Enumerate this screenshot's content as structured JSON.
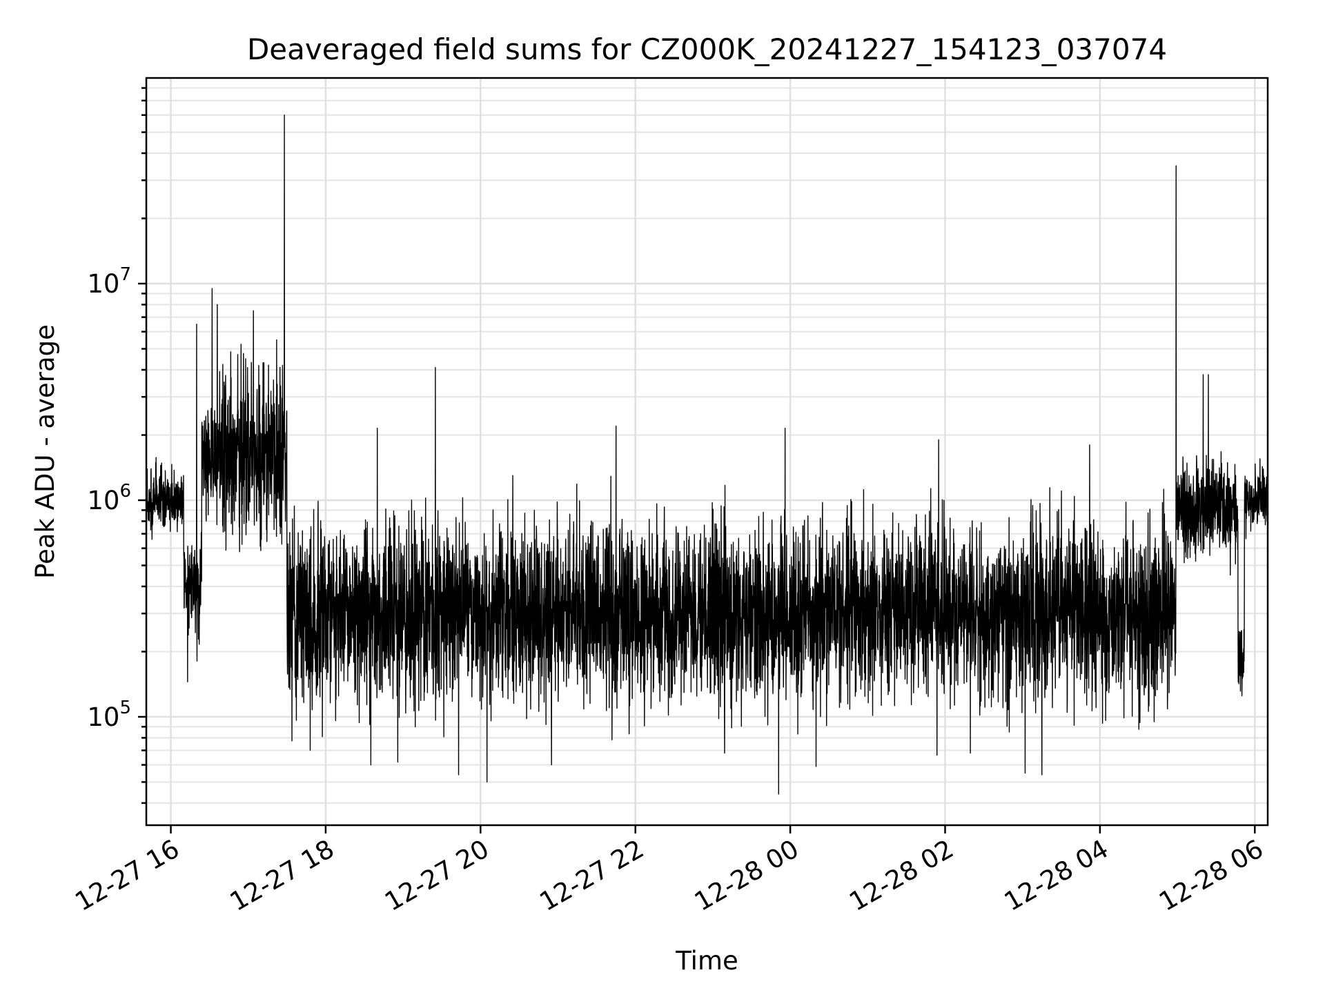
{
  "chart_data": {
    "type": "line",
    "title": "Deaveraged field sums for CZ000K_20241227_154123_037074",
    "xlabel": "Time",
    "ylabel": "Peak ADU - average",
    "y_scale": "log",
    "grid": "major and minor",
    "legend": "none",
    "line_color": "#000000",
    "x_ticks": [
      "2024-12-27T16:00",
      "2024-12-27T18:00",
      "2024-12-27T20:00",
      "2024-12-27T22:00",
      "2024-12-28T00:00",
      "2024-12-28T02:00",
      "2024-12-28T04:00",
      "2024-12-28T06:00"
    ],
    "x_tick_labels": [
      "12-27 16",
      "12-27 18",
      "12-27 20",
      "12-27 22",
      "12-28 00",
      "12-28 02",
      "12-28 04",
      "12-28 06"
    ],
    "xlim": [
      "2024-12-27T15:41",
      "2024-12-28T06:10"
    ],
    "ylim": [
      31600,
      89000000
    ],
    "y_ticks": [
      100000,
      1000000,
      10000000
    ],
    "y_tick_labels": [
      {
        "base": "10",
        "exp": "5"
      },
      {
        "base": "10",
        "exp": "6"
      },
      {
        "base": "10",
        "exp": "7"
      }
    ],
    "approximate_series_segments": [
      {
        "start": "2024-12-27T15:41",
        "end": "2024-12-27T16:10",
        "baseline": 1000000,
        "spread": 0.15
      },
      {
        "start": "2024-12-27T16:10",
        "end": "2024-12-27T16:24",
        "baseline": 400000,
        "spread": 0.2
      },
      {
        "start": "2024-12-27T16:24",
        "end": "2024-12-27T16:40",
        "baseline": 1500000,
        "spread": 0.25
      },
      {
        "start": "2024-12-27T16:40",
        "end": "2024-12-27T17:30",
        "baseline": 1600000,
        "spread": 0.35
      },
      {
        "start": "2024-12-27T17:30",
        "end": "2024-12-28T04:59",
        "baseline": 300000,
        "spread": 0.38
      },
      {
        "start": "2024-12-28T04:59",
        "end": "2024-12-28T05:47",
        "baseline": 900000,
        "spread": 0.2
      },
      {
        "start": "2024-12-28T05:47",
        "end": "2024-12-28T05:52",
        "baseline": 180000,
        "spread": 0.15
      },
      {
        "start": "2024-12-28T05:52",
        "end": "2024-12-28T06:10",
        "baseline": 1000000,
        "spread": 0.12
      }
    ],
    "notable_spikes": [
      {
        "t": "2024-12-27T17:28",
        "value": 60000000
      },
      {
        "t": "2024-12-28T04:59",
        "value": 35000000
      },
      {
        "t": "2024-12-27T16:32",
        "value": 9500000
      },
      {
        "t": "2024-12-27T16:36",
        "value": 8000000
      },
      {
        "t": "2024-12-27T17:04",
        "value": 7500000
      },
      {
        "t": "2024-12-27T16:20",
        "value": 6500000
      },
      {
        "t": "2024-12-27T17:22",
        "value": 5500000
      },
      {
        "t": "2024-12-27T16:58",
        "value": 4500000
      },
      {
        "t": "2024-12-27T19:25",
        "value": 4100000
      },
      {
        "t": "2024-12-28T05:20",
        "value": 3800000
      },
      {
        "t": "2024-12-28T05:24",
        "value": 3800000
      },
      {
        "t": "2024-12-27T21:45",
        "value": 2200000
      },
      {
        "t": "2024-12-27T23:56",
        "value": 2150000
      },
      {
        "t": "2024-12-27T18:40",
        "value": 2150000
      },
      {
        "t": "2024-12-28T01:55",
        "value": 1900000
      },
      {
        "t": "2024-12-28T03:52",
        "value": 1800000
      },
      {
        "t": "2024-12-27T20:25",
        "value": 1300000
      }
    ],
    "notable_dips": [
      {
        "t": "2024-12-27T23:51",
        "value": 44000
      },
      {
        "t": "2024-12-27T20:05",
        "value": 50000
      },
      {
        "t": "2024-12-27T19:43",
        "value": 54000
      },
      {
        "t": "2024-12-28T03:15",
        "value": 54000
      },
      {
        "t": "2024-12-28T03:02",
        "value": 55000
      },
      {
        "t": "2024-12-28T00:20",
        "value": 59000
      },
      {
        "t": "2024-12-27T18:35",
        "value": 60000
      },
      {
        "t": "2024-12-27T20:55",
        "value": 60000
      },
      {
        "t": "2024-12-27T17:48",
        "value": 70000
      },
      {
        "t": "2024-12-27T16:13",
        "value": 145000
      },
      {
        "t": "2024-12-28T05:50",
        "value": 125000
      }
    ]
  }
}
